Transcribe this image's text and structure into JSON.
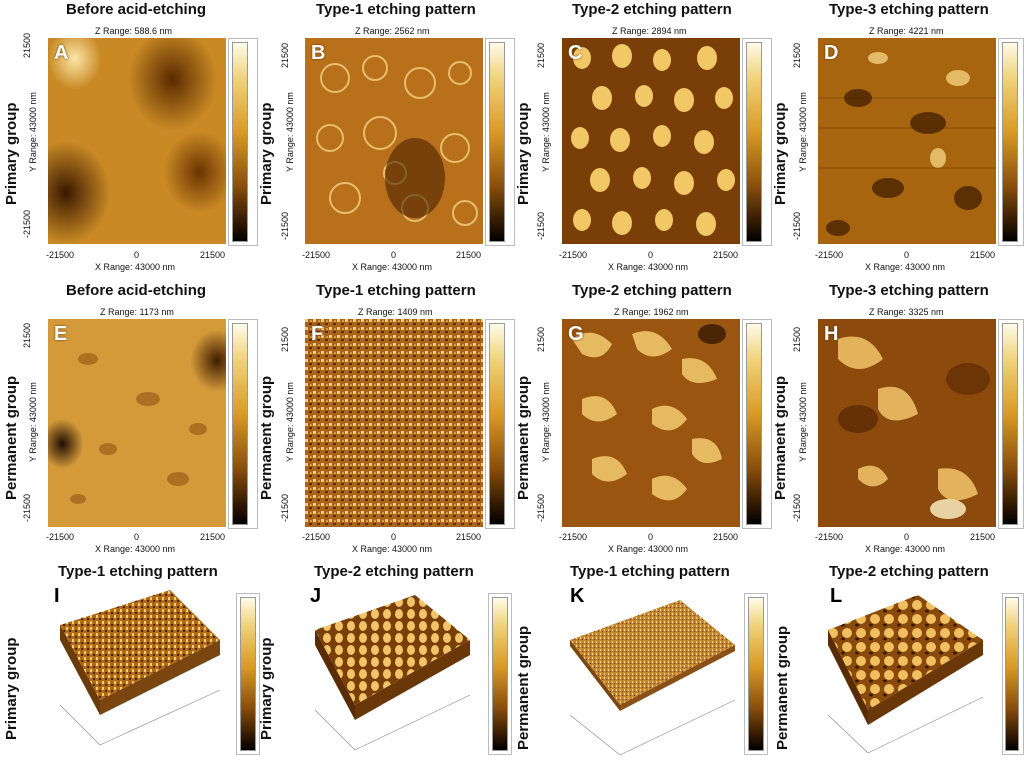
{
  "titles": {
    "before": "Before acid-etching",
    "type1": "Type-1 etching pattern",
    "type2": "Type-2 etching pattern",
    "type3": "Type-3 etching pattern"
  },
  "groups": {
    "primary": "Primary group",
    "permanent": "Permanent group"
  },
  "axis": {
    "x_range": "X Range: 43000 nm",
    "y_range": "Y Range: 43000 nm",
    "tick_neg": "-21500",
    "tick_zero": "0",
    "tick_pos": "21500"
  },
  "panels": {
    "A": {
      "letter": "A",
      "zrange": "Z Range:  588.6 nm"
    },
    "B": {
      "letter": "B",
      "zrange": "Z Range:  2562 nm"
    },
    "C": {
      "letter": "C",
      "zrange": "Z Range:  2894 nm"
    },
    "D": {
      "letter": "D",
      "zrange": "Z Range:  4221 nm"
    },
    "E": {
      "letter": "E",
      "zrange": "Z Range:  1173 nm"
    },
    "F": {
      "letter": "F",
      "zrange": "Z Range:  1409 nm"
    },
    "G": {
      "letter": "G",
      "zrange": "Z Range:  1962 nm"
    },
    "H": {
      "letter": "H",
      "zrange": "Z Range:  3325 nm"
    },
    "I": {
      "letter": "I"
    },
    "J": {
      "letter": "J"
    },
    "K": {
      "letter": "K"
    },
    "L": {
      "letter": "L"
    }
  },
  "colors": {
    "afm_light": "#f3c35a",
    "afm_mid": "#c27a18",
    "afm_dark": "#3a1a00"
  }
}
